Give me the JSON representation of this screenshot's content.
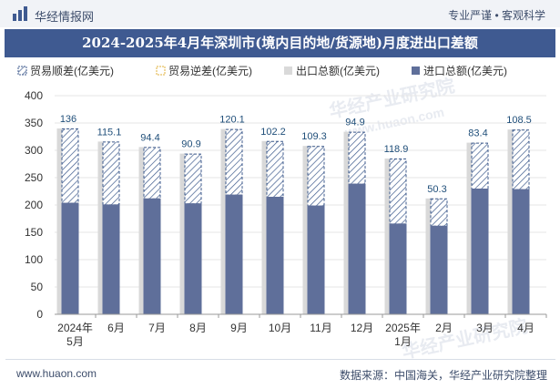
{
  "header": {
    "site_name": "华经情报网",
    "tagline": "专业严谨 • 客观科学"
  },
  "colors": {
    "export": "#d9d9d9",
    "import": "#5f6f9a",
    "surplus_stripe": "#3d5a8c",
    "title_bar": "#3f5a91"
  },
  "chart_data": {
    "type": "bar",
    "title": "2024-2025年4月年深圳市(境内目的地/货源地)月度进出口差额",
    "legend": [
      "贸易顺差(亿美元)",
      "贸易逆差(亿美元)",
      "出口总额(亿美元)",
      "进口总额(亿美元)"
    ],
    "categories": [
      [
        "2024年",
        "5月"
      ],
      [
        "6月"
      ],
      [
        "7月"
      ],
      [
        "8月"
      ],
      [
        "9月"
      ],
      [
        "10月"
      ],
      [
        "11月"
      ],
      [
        "12月"
      ],
      [
        "2025年",
        "1月"
      ],
      [
        "2月"
      ],
      [
        "3月"
      ],
      [
        "4月"
      ]
    ],
    "series": [
      {
        "name": "出口总额(亿美元)",
        "values": [
          340,
          316,
          306,
          294,
          339,
          317,
          308,
          334,
          285,
          212,
          314,
          338
        ]
      },
      {
        "name": "进口总额(亿美元)",
        "values": [
          204,
          201,
          212,
          203,
          219,
          215,
          199,
          239,
          166,
          162,
          230,
          229
        ]
      },
      {
        "name": "贸易顺差(亿美元)",
        "values": [
          136,
          115.1,
          94.4,
          90.9,
          120.1,
          102.2,
          109.3,
          94.9,
          118.9,
          50.3,
          83.4,
          108.5
        ]
      }
    ],
    "value_labels": [
      "136",
      "115.1",
      "94.4",
      "90.9",
      "120.1",
      "102.2",
      "109.3",
      "94.9",
      "118.9",
      "50.3",
      "83.4",
      "108.5"
    ],
    "yticks": [
      "0",
      "50",
      "100",
      "150",
      "200",
      "250",
      "300",
      "350",
      "400"
    ],
    "ylim": [
      0,
      400
    ]
  },
  "watermarks": [
    "华经产业研究院",
    "www.huaon.com",
    "华经产业研究院"
  ],
  "footer": {
    "website": "www.huaon.com",
    "source": "数据来源：中国海关，华经产业研究院整理"
  }
}
